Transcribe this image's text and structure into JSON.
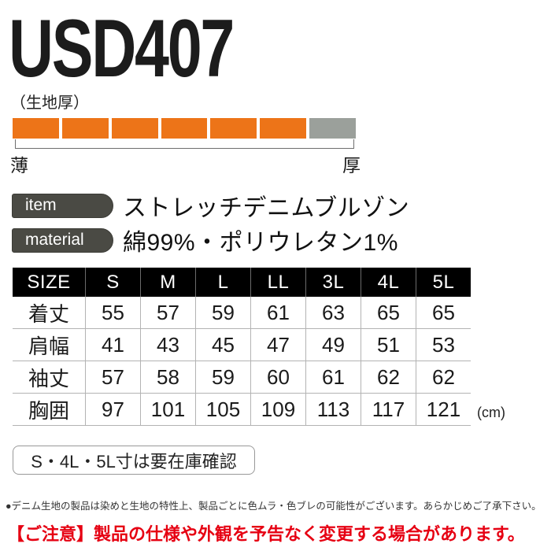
{
  "page": {
    "title": "USD407"
  },
  "thickness_gauge": {
    "label": "（生地厚）",
    "segments_total": 7,
    "segments_filled": 6,
    "filled_color": "#ed7418",
    "empty_color": "#9ba09b",
    "left_label": "薄",
    "right_label": "厚"
  },
  "item": {
    "badge_label": "item",
    "value": "ストレッチデニムブルゾン"
  },
  "material": {
    "badge_label": "material",
    "value": "綿99%・ポリウレタン1%"
  },
  "size_table": {
    "headers": [
      "SIZE",
      "S",
      "M",
      "L",
      "LL",
      "3L",
      "4L",
      "5L"
    ],
    "rows": [
      {
        "label": "着丈",
        "values": [
          "55",
          "57",
          "59",
          "61",
          "63",
          "65",
          "65"
        ]
      },
      {
        "label": "肩幅",
        "values": [
          "41",
          "43",
          "45",
          "47",
          "49",
          "51",
          "53"
        ]
      },
      {
        "label": "袖丈",
        "values": [
          "57",
          "58",
          "59",
          "60",
          "61",
          "62",
          "62"
        ]
      },
      {
        "label": "胸囲",
        "values": [
          "97",
          "101",
          "105",
          "109",
          "113",
          "117",
          "121"
        ]
      }
    ],
    "unit": "(cm)",
    "header_bg": "#000000",
    "header_text_color": "#ffffff"
  },
  "stock_note": "S・4L・5L寸は要在庫確認",
  "footnotes": {
    "denim_note": "●デニム生地の製品は染めと生地の特性上、製品ごとに色ムラ・色ブレの可能性がございます。あらかじめご了承下さい。",
    "warning": "【ご注意】製品の仕様や外観を予告なく変更する場合があります。",
    "warning_color": "#e60012"
  }
}
